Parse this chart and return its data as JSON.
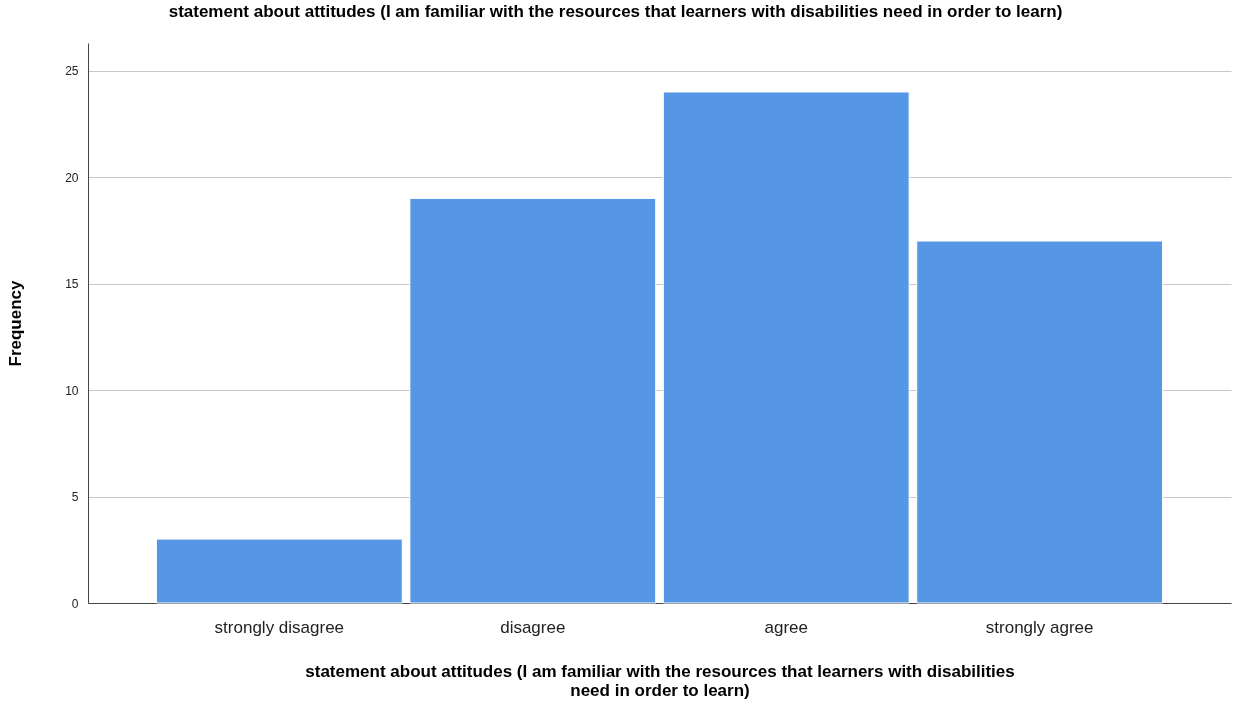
{
  "chart_data": {
    "type": "bar",
    "title": "statement about attitudes (I am familiar with the resources that learners with disabilities need in order to learn)",
    "xlabel": "statement about attitudes (I am familiar with the resources that learners with disabilities need in order to learn)",
    "ylabel": "Frequency",
    "categories": [
      "strongly disagree",
      "disagree",
      "agree",
      "strongly agree"
    ],
    "values": [
      3,
      19,
      24,
      17
    ],
    "color": "#5596e5",
    "ylim": [
      0,
      26.3
    ],
    "yticks": [
      0,
      5,
      10,
      15,
      20,
      25
    ],
    "grid": "y"
  }
}
